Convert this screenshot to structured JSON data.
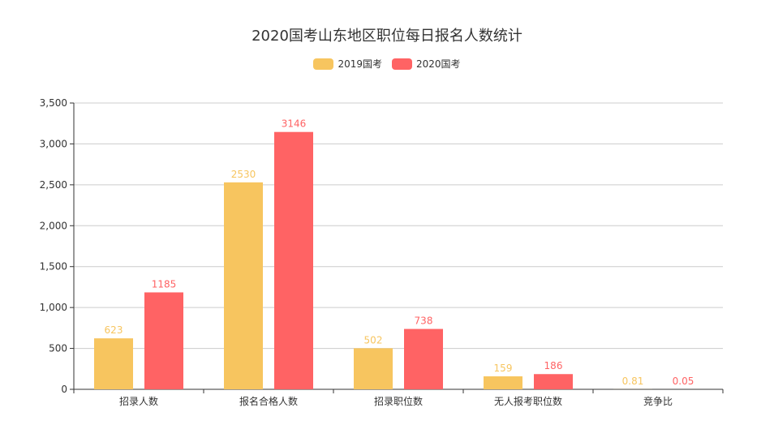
{
  "chart_data": {
    "type": "bar",
    "title": "2020国考山东地区职位每日报名人数统计",
    "categories": [
      "招录人数",
      "报名合格人数",
      "招录职位数",
      "无人报考职位数",
      "竞争比"
    ],
    "series": [
      {
        "name": "2019国考",
        "values": [
          623,
          2530,
          502,
          159,
          0.81
        ],
        "color": "#f7c55f"
      },
      {
        "name": "2020国考",
        "values": [
          1185,
          3146,
          738,
          186,
          0.05
        ],
        "color": "#ff6364"
      }
    ],
    "ylim": [
      0,
      3500
    ],
    "yticks": [
      0,
      500,
      1000,
      1500,
      2000,
      2500,
      3000,
      3500
    ],
    "ytick_labels": [
      "0",
      "500",
      "1,000",
      "1,500",
      "2,000",
      "2,500",
      "3,000",
      "3,500"
    ],
    "grid": true,
    "legend_position": "top-center",
    "xlabel": "",
    "ylabel": ""
  }
}
